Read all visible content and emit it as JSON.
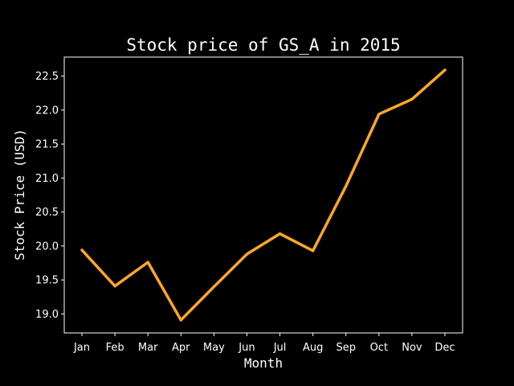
{
  "chart_data": {
    "type": "line",
    "title": "Stock price of GS_A in 2015",
    "xlabel": "Month",
    "ylabel": "Stock Price (USD)",
    "categories": [
      "Jan",
      "Feb",
      "Mar",
      "Apr",
      "May",
      "Jun",
      "Jul",
      "Aug",
      "Sep",
      "Oct",
      "Nov",
      "Dec"
    ],
    "series": [
      {
        "values": [
          19.94,
          19.41,
          19.76,
          18.91,
          19.4,
          19.88,
          20.18,
          19.93,
          20.88,
          21.94,
          22.16,
          22.59
        ],
        "color": "#ffa726"
      }
    ],
    "yticks": [
      "19.0",
      "19.5",
      "20.0",
      "20.5",
      "21.0",
      "21.5",
      "22.0",
      "22.5"
    ],
    "ylim": [
      18.72,
      22.78
    ],
    "grid": false,
    "legend": "none",
    "background": "#000000",
    "foreground": "#ffffff"
  }
}
